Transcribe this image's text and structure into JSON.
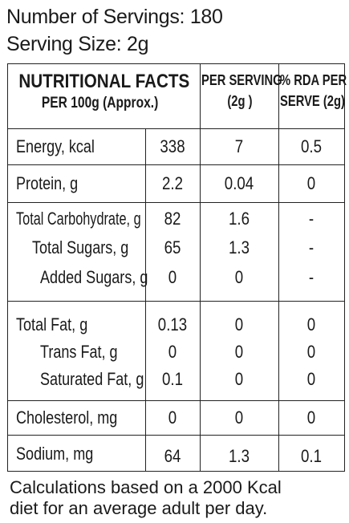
{
  "servings": "Number of Servings: 180",
  "serving_size": "Serving Size: 2g",
  "table": {
    "header": {
      "col1_line1": "NUTRITIONAL FACTS",
      "col1_line2": "PER 100g (Approx.)",
      "col2_line1": "PER SERVING",
      "col2_line2": "(2g )",
      "col3_line1": "% RDA PER",
      "col3_line2": "SERVE (2g)"
    },
    "rows": [
      {
        "label": "Energy, kcal",
        "per100": "338",
        "serving": "7",
        "rda": "0.5"
      },
      {
        "label": "Protein, g",
        "per100": "2.2",
        "serving": "0.04",
        "rda": "0"
      },
      {
        "label": "Total Carbohydrate, g",
        "per100": "82",
        "serving": "1.6",
        "rda": "-"
      },
      {
        "label": "Total Sugars, g",
        "per100": "65",
        "serving": "1.3",
        "rda": "-"
      },
      {
        "label": "Added Sugars, g",
        "per100": "0",
        "serving": "0",
        "rda": "-"
      },
      {
        "label": "Total Fat, g",
        "per100": "0.13",
        "serving": "0",
        "rda": "0"
      },
      {
        "label": "Trans Fat, g",
        "per100": "0",
        "serving": "0",
        "rda": "0"
      },
      {
        "label": "Saturated Fat, g",
        "per100": "0.1",
        "serving": "0",
        "rda": "0"
      },
      {
        "label": "Cholesterol, mg",
        "per100": "0",
        "serving": "0",
        "rda": "0"
      },
      {
        "label": "Sodium, mg",
        "per100": "64",
        "serving": "1.3",
        "rda": "0.1"
      }
    ]
  },
  "footnote_line1": "Calculations based on a 2000 Kcal",
  "footnote_line2": "diet for an average adult per day."
}
